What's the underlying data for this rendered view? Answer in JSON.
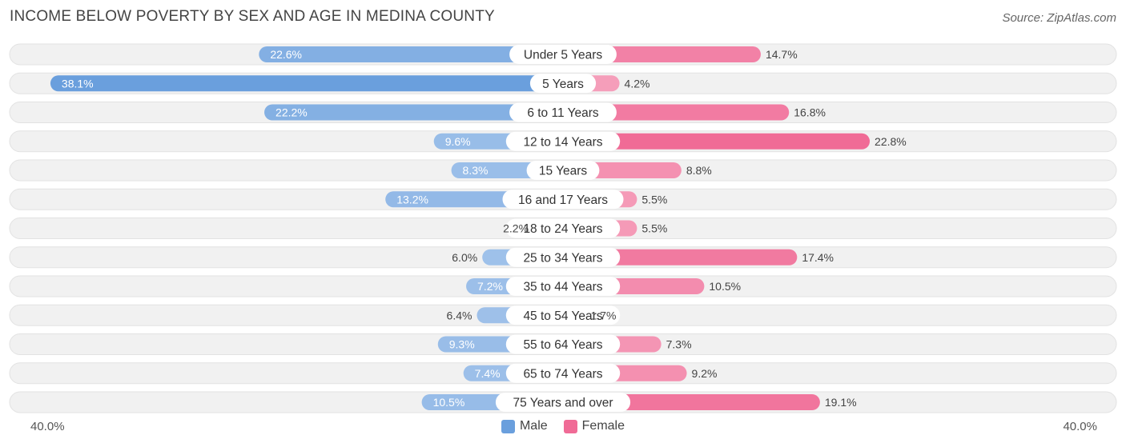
{
  "title": "INCOME BELOW POVERTY BY SEX AND AGE IN MEDINA COUNTY",
  "source": "Source: ZipAtlas.com",
  "colors": {
    "male_strong": "#6a9fdd",
    "male_light": "#a8c7ec",
    "female_strong": "#f06b96",
    "female_light": "#f6a9c2",
    "row_bg": "#f1f1f1"
  },
  "legend": {
    "male": "Male",
    "female": "Female"
  },
  "chart_data": {
    "type": "bar",
    "orientation": "horizontal-diverging",
    "title": "INCOME BELOW POVERTY BY SEX AND AGE IN MEDINA COUNTY",
    "axis_min_label": "40.0%",
    "axis_max_label": "40.0%",
    "xlim": [
      -40,
      40
    ],
    "categories": [
      "Under 5 Years",
      "5 Years",
      "6 to 11 Years",
      "12 to 14 Years",
      "15 Years",
      "16 and 17 Years",
      "18 to 24 Years",
      "25 to 34 Years",
      "35 to 44 Years",
      "45 to 54 Years",
      "55 to 64 Years",
      "65 to 74 Years",
      "75 Years and over"
    ],
    "series": [
      {
        "name": "Male",
        "values": [
          22.6,
          38.1,
          22.2,
          9.6,
          8.3,
          13.2,
          2.2,
          6.0,
          7.2,
          6.4,
          9.3,
          7.4,
          10.5
        ],
        "labels": [
          "22.6%",
          "38.1%",
          "22.2%",
          "9.6%",
          "8.3%",
          "13.2%",
          "2.2%",
          "6.0%",
          "7.2%",
          "6.4%",
          "9.3%",
          "7.4%",
          "10.5%"
        ]
      },
      {
        "name": "Female",
        "values": [
          14.7,
          4.2,
          16.8,
          22.8,
          8.8,
          5.5,
          5.5,
          17.4,
          10.5,
          1.7,
          7.3,
          9.2,
          19.1
        ],
        "labels": [
          "14.7%",
          "4.2%",
          "16.8%",
          "22.8%",
          "8.8%",
          "5.5%",
          "5.5%",
          "17.4%",
          "10.5%",
          "1.7%",
          "7.3%",
          "9.2%",
          "19.1%"
        ]
      }
    ]
  }
}
